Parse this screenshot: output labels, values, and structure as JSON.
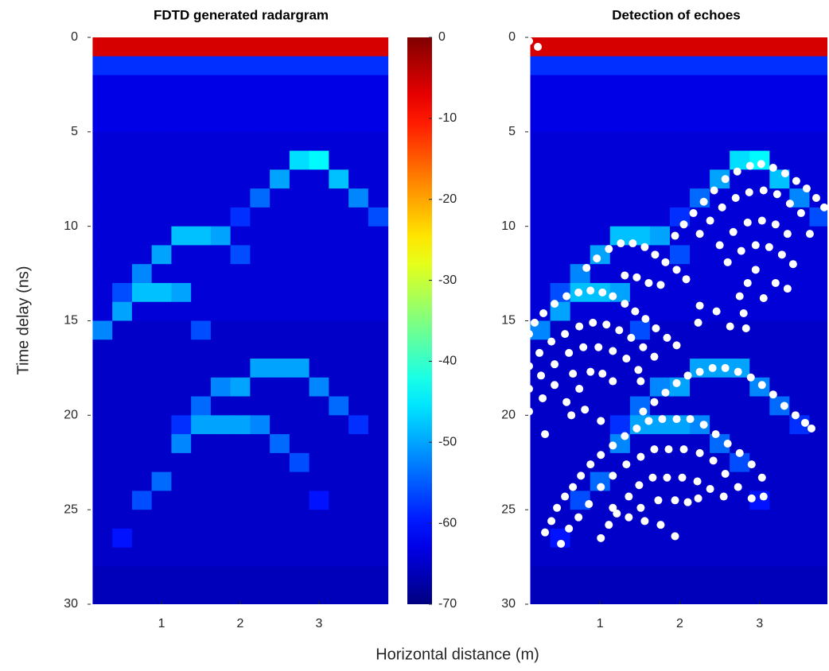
{
  "chart_data": [
    {
      "type": "heatmap",
      "title": "FDTD generated radargram",
      "xlabel": "Horizontal distance (m)",
      "ylabel": "Time delay (ns)",
      "colormap": "jet",
      "reverse_y": true,
      "xlim": [
        0.06,
        3.97
      ],
      "ylim": [
        0,
        30
      ],
      "xticks": [
        1,
        2,
        3
      ],
      "yticks": [
        0,
        5,
        10,
        15,
        20,
        25,
        30
      ],
      "x": [
        0.25,
        0.5,
        0.75,
        1.0,
        1.25,
        1.5,
        1.75,
        2.0,
        2.25,
        2.5,
        2.75,
        3.0,
        3.25,
        3.5,
        3.75
      ],
      "y": [
        0.5,
        1.5,
        2.5,
        3.5,
        4.5,
        5.5,
        6.5,
        7.5,
        8.5,
        9.5,
        10.5,
        11.5,
        12.5,
        13.5,
        14.5,
        15.5,
        16.5,
        17.5,
        18.5,
        19.5,
        20.5,
        21.5,
        22.5,
        23.5,
        24.5,
        25.5,
        26.5,
        27.5,
        28.5,
        29.5
      ],
      "z": [
        [
          -6,
          -6,
          -6,
          -6,
          -6,
          -6,
          -6,
          -6,
          -6,
          -6,
          -6,
          -6,
          -6,
          -6,
          -6
        ],
        [
          -58,
          -58,
          -58,
          -58,
          -58,
          -58,
          -58,
          -58,
          -58,
          -58,
          -58,
          -58,
          -58,
          -58,
          -58
        ],
        [
          -63,
          -63,
          -63,
          -63,
          -63,
          -63,
          -63,
          -63,
          -63,
          -63,
          -63,
          -63,
          -63,
          -63,
          -63
        ],
        [
          -63,
          -63,
          -63,
          -63,
          -63,
          -63,
          -63,
          -63,
          -63,
          -63,
          -63,
          -63,
          -63,
          -63,
          -63
        ],
        [
          -63,
          -63,
          -63,
          -63,
          -63,
          -63,
          -63,
          -63,
          -63,
          -63,
          -63,
          -63,
          -63,
          -63,
          -63
        ],
        [
          -64,
          -64,
          -64,
          -64,
          -64,
          -64,
          -64,
          -64,
          -64,
          -64,
          -64,
          -64,
          -64,
          -64,
          -64
        ],
        [
          -64,
          -64,
          -64,
          -64,
          -64,
          -64,
          -64,
          -64,
          -64,
          -64,
          -46,
          -44,
          -64,
          -64,
          -64
        ],
        [
          -64,
          -64,
          -64,
          -64,
          -64,
          -64,
          -64,
          -64,
          -64,
          -50,
          -64,
          -64,
          -48,
          -64,
          -64
        ],
        [
          -64,
          -64,
          -64,
          -64,
          -64,
          -64,
          -64,
          -64,
          -54,
          -64,
          -64,
          -64,
          -64,
          -52,
          -64
        ],
        [
          -64,
          -64,
          -64,
          -64,
          -64,
          -64,
          -64,
          -58,
          -64,
          -64,
          -64,
          -64,
          -64,
          -64,
          -56
        ],
        [
          -64,
          -64,
          -64,
          -64,
          -48,
          -48,
          -50,
          -64,
          -64,
          -64,
          -64,
          -64,
          -64,
          -64,
          -64
        ],
        [
          -64,
          -64,
          -64,
          -50,
          -64,
          -64,
          -64,
          -56,
          -64,
          -64,
          -64,
          -64,
          -64,
          -64,
          -64
        ],
        [
          -64,
          -64,
          -52,
          -64,
          -64,
          -64,
          -64,
          -64,
          -64,
          -64,
          -64,
          -64,
          -64,
          -64,
          -64
        ],
        [
          -64,
          -56,
          -48,
          -48,
          -50,
          -64,
          -64,
          -64,
          -64,
          -64,
          -64,
          -64,
          -64,
          -64,
          -64
        ],
        [
          -64,
          -50,
          -64,
          -64,
          -64,
          -64,
          -64,
          -64,
          -64,
          -64,
          -64,
          -64,
          -64,
          -64,
          -64
        ],
        [
          -52,
          -65,
          -65,
          -65,
          -65,
          -56,
          -65,
          -65,
          -65,
          -65,
          -65,
          -65,
          -65,
          -65,
          -65
        ],
        [
          -65,
          -65,
          -65,
          -65,
          -65,
          -65,
          -65,
          -65,
          -65,
          -65,
          -65,
          -65,
          -65,
          -65,
          -65
        ],
        [
          -65,
          -65,
          -65,
          -65,
          -65,
          -65,
          -65,
          -65,
          -50,
          -50,
          -50,
          -65,
          -65,
          -65,
          -65
        ],
        [
          -65,
          -65,
          -65,
          -65,
          -65,
          -65,
          -52,
          -50,
          -65,
          -65,
          -65,
          -52,
          -65,
          -65,
          -65
        ],
        [
          -65,
          -65,
          -65,
          -65,
          -65,
          -54,
          -65,
          -65,
          -65,
          -65,
          -65,
          -65,
          -54,
          -65,
          -65
        ],
        [
          -65,
          -65,
          -65,
          -65,
          -58,
          -50,
          -50,
          -50,
          -52,
          -65,
          -65,
          -65,
          -65,
          -58,
          -65
        ],
        [
          -65,
          -65,
          -65,
          -65,
          -52,
          -65,
          -65,
          -65,
          -65,
          -54,
          -65,
          -65,
          -65,
          -65,
          -65
        ],
        [
          -65,
          -65,
          -65,
          -65,
          -65,
          -65,
          -65,
          -65,
          -65,
          -65,
          -56,
          -65,
          -65,
          -65,
          -65
        ],
        [
          -65,
          -65,
          -65,
          -54,
          -65,
          -65,
          -65,
          -65,
          -65,
          -65,
          -65,
          -65,
          -65,
          -65,
          -65
        ],
        [
          -65,
          -65,
          -56,
          -65,
          -65,
          -65,
          -65,
          -65,
          -65,
          -65,
          -65,
          -60,
          -65,
          -65,
          -65
        ],
        [
          -65,
          -65,
          -65,
          -65,
          -65,
          -65,
          -65,
          -65,
          -65,
          -65,
          -65,
          -65,
          -65,
          -65,
          -65
        ],
        [
          -65,
          -60,
          -65,
          -65,
          -65,
          -65,
          -65,
          -65,
          -65,
          -65,
          -65,
          -65,
          -65,
          -65,
          -65
        ],
        [
          -65,
          -65,
          -65,
          -65,
          -65,
          -65,
          -65,
          -65,
          -65,
          -65,
          -65,
          -65,
          -65,
          -65,
          -65
        ],
        [
          -66,
          -66,
          -66,
          -66,
          -66,
          -66,
          -66,
          -66,
          -66,
          -66,
          -66,
          -66,
          -66,
          -66,
          -66
        ],
        [
          -66,
          -66,
          -66,
          -66,
          -66,
          -66,
          -66,
          -66,
          -66,
          -66,
          -66,
          -66,
          -66,
          -66,
          -66
        ]
      ],
      "colorbar": {
        "clim": [
          -70,
          0
        ],
        "ticks": [
          0,
          -10,
          -20,
          -30,
          -40,
          -50,
          -60,
          -70
        ]
      }
    },
    {
      "type": "scatter",
      "title": "Detection of echoes",
      "color": "#ffffff",
      "reverse_y": true,
      "xlim": [
        0.06,
        3.85
      ],
      "ylim": [
        0,
        30
      ],
      "xticks": [
        1,
        2,
        3
      ],
      "yticks": [
        0,
        5,
        10,
        15,
        20,
        25,
        30
      ],
      "x": [
        0.11,
        0.22,
        1.94,
        2.05,
        2.17,
        2.3,
        2.43,
        2.57,
        2.72,
        2.88,
        3.02,
        3.17,
        3.32,
        3.46,
        3.59,
        3.71,
        3.81,
        2.25,
        2.38,
        2.53,
        2.7,
        2.87,
        3.05,
        3.22,
        3.38,
        3.52,
        3.63,
        2.5,
        2.67,
        2.85,
        3.03,
        3.2,
        3.35,
        2.6,
        2.77,
        2.95,
        3.12,
        3.28,
        3.42,
        2.95,
        2.85,
        2.75,
        3.35,
        3.2,
        3.05,
        2.8,
        2.63,
        2.83,
        2.46,
        2.25,
        2.23,
        0.83,
        0.96,
        1.11,
        1.26,
        1.41,
        1.56,
        1.69,
        1.82,
        1.96,
        2.08,
        1.31,
        1.46,
        1.61,
        1.76,
        0.11,
        0.18,
        0.29,
        0.43,
        0.58,
        0.73,
        0.88,
        1.03,
        1.16,
        1.31,
        1.44,
        1.57,
        1.7,
        1.84,
        1.96,
        0.11,
        0.24,
        0.39,
        0.56,
        0.74,
        0.91,
        1.08,
        1.24,
        1.39,
        1.54,
        1.68,
        0.11,
        0.26,
        0.43,
        0.61,
        0.79,
        0.98,
        1.16,
        1.33,
        1.48,
        1.51,
        0.11,
        0.28,
        0.43,
        0.66,
        0.88,
        1.03,
        1.16,
        0.74,
        0.58,
        0.64,
        0.81,
        1.01,
        0.31,
        1.54,
        1.68,
        1.82,
        1.96,
        2.1,
        2.25,
        2.41,
        2.57,
        2.73,
        2.89,
        3.03,
        3.17,
        3.31,
        3.45,
        3.57,
        3.65,
        0.31,
        0.39,
        0.46,
        0.56,
        0.66,
        0.76,
        0.88,
        1.01,
        1.16,
        1.31,
        1.46,
        1.61,
        1.78,
        1.96,
        2.13,
        2.3,
        2.45,
        2.6,
        2.75,
        2.9,
        3.03,
        0.51,
        0.61,
        0.73,
        0.86,
        1.01,
        1.16,
        1.33,
        1.51,
        1.68,
        1.86,
        2.05,
        2.25,
        2.42,
        2.57,
        2.73,
        2.9,
        3.05,
        1.01,
        1.11,
        1.21,
        1.36,
        1.49,
        1.66,
        1.84,
        2.03,
        2.22,
        2.38,
        2.55,
        1.36,
        1.51,
        1.73,
        1.94,
        2.1,
        2.23,
        1.76,
        1.94,
        1.56,
        1.16
      ],
      "y": [
        0.2,
        0.5,
        10.5,
        9.9,
        9.3,
        8.7,
        8.1,
        7.5,
        7.1,
        6.8,
        6.7,
        6.9,
        7.2,
        7.6,
        8.0,
        8.5,
        9.0,
        10.4,
        9.7,
        9.0,
        8.5,
        8.2,
        8.1,
        8.3,
        8.8,
        9.3,
        10.4,
        11.0,
        10.3,
        9.8,
        9.7,
        9.9,
        10.4,
        11.9,
        11.3,
        11.0,
        11.1,
        11.5,
        12.0,
        12.3,
        13.0,
        13.7,
        13.3,
        13.0,
        13.8,
        14.6,
        15.3,
        15.4,
        14.5,
        14.2,
        15.1,
        12.2,
        11.7,
        11.2,
        10.9,
        10.9,
        11.1,
        11.5,
        11.9,
        12.3,
        12.8,
        12.6,
        12.7,
        13.0,
        13.1,
        15.7,
        15.1,
        14.6,
        14.1,
        13.7,
        13.5,
        13.4,
        13.5,
        13.7,
        14.1,
        14.5,
        14.9,
        15.4,
        15.9,
        16.3,
        17.4,
        16.7,
        16.1,
        15.7,
        15.3,
        15.1,
        15.2,
        15.5,
        15.9,
        16.4,
        16.9,
        18.6,
        17.9,
        17.3,
        16.7,
        16.4,
        16.4,
        16.6,
        17.0,
        17.6,
        18.2,
        19.8,
        19.1,
        18.4,
        17.8,
        17.7,
        17.8,
        18.2,
        18.6,
        19.3,
        20.0,
        19.7,
        20.3,
        21.0,
        19.8,
        19.3,
        18.8,
        18.3,
        17.9,
        17.7,
        17.5,
        17.5,
        17.7,
        18.0,
        18.4,
        18.9,
        19.5,
        20.0,
        20.4,
        20.7,
        26.2,
        25.6,
        24.9,
        24.3,
        23.8,
        23.2,
        22.6,
        22.1,
        21.6,
        21.1,
        20.7,
        20.3,
        20.2,
        20.2,
        20.2,
        20.5,
        21.0,
        21.5,
        22.0,
        22.6,
        23.3,
        26.8,
        26.0,
        25.4,
        24.7,
        23.8,
        23.2,
        22.6,
        22.2,
        21.8,
        21.8,
        21.8,
        22.0,
        22.4,
        23.1,
        23.8,
        24.4,
        24.3,
        26.5,
        25.8,
        25.2,
        24.3,
        23.7,
        23.3,
        23.3,
        23.3,
        23.5,
        23.9,
        24.3,
        25.4,
        24.9,
        24.5,
        24.5,
        24.6,
        24.4,
        25.8,
        26.4,
        25.6,
        24.9
      ]
    }
  ]
}
